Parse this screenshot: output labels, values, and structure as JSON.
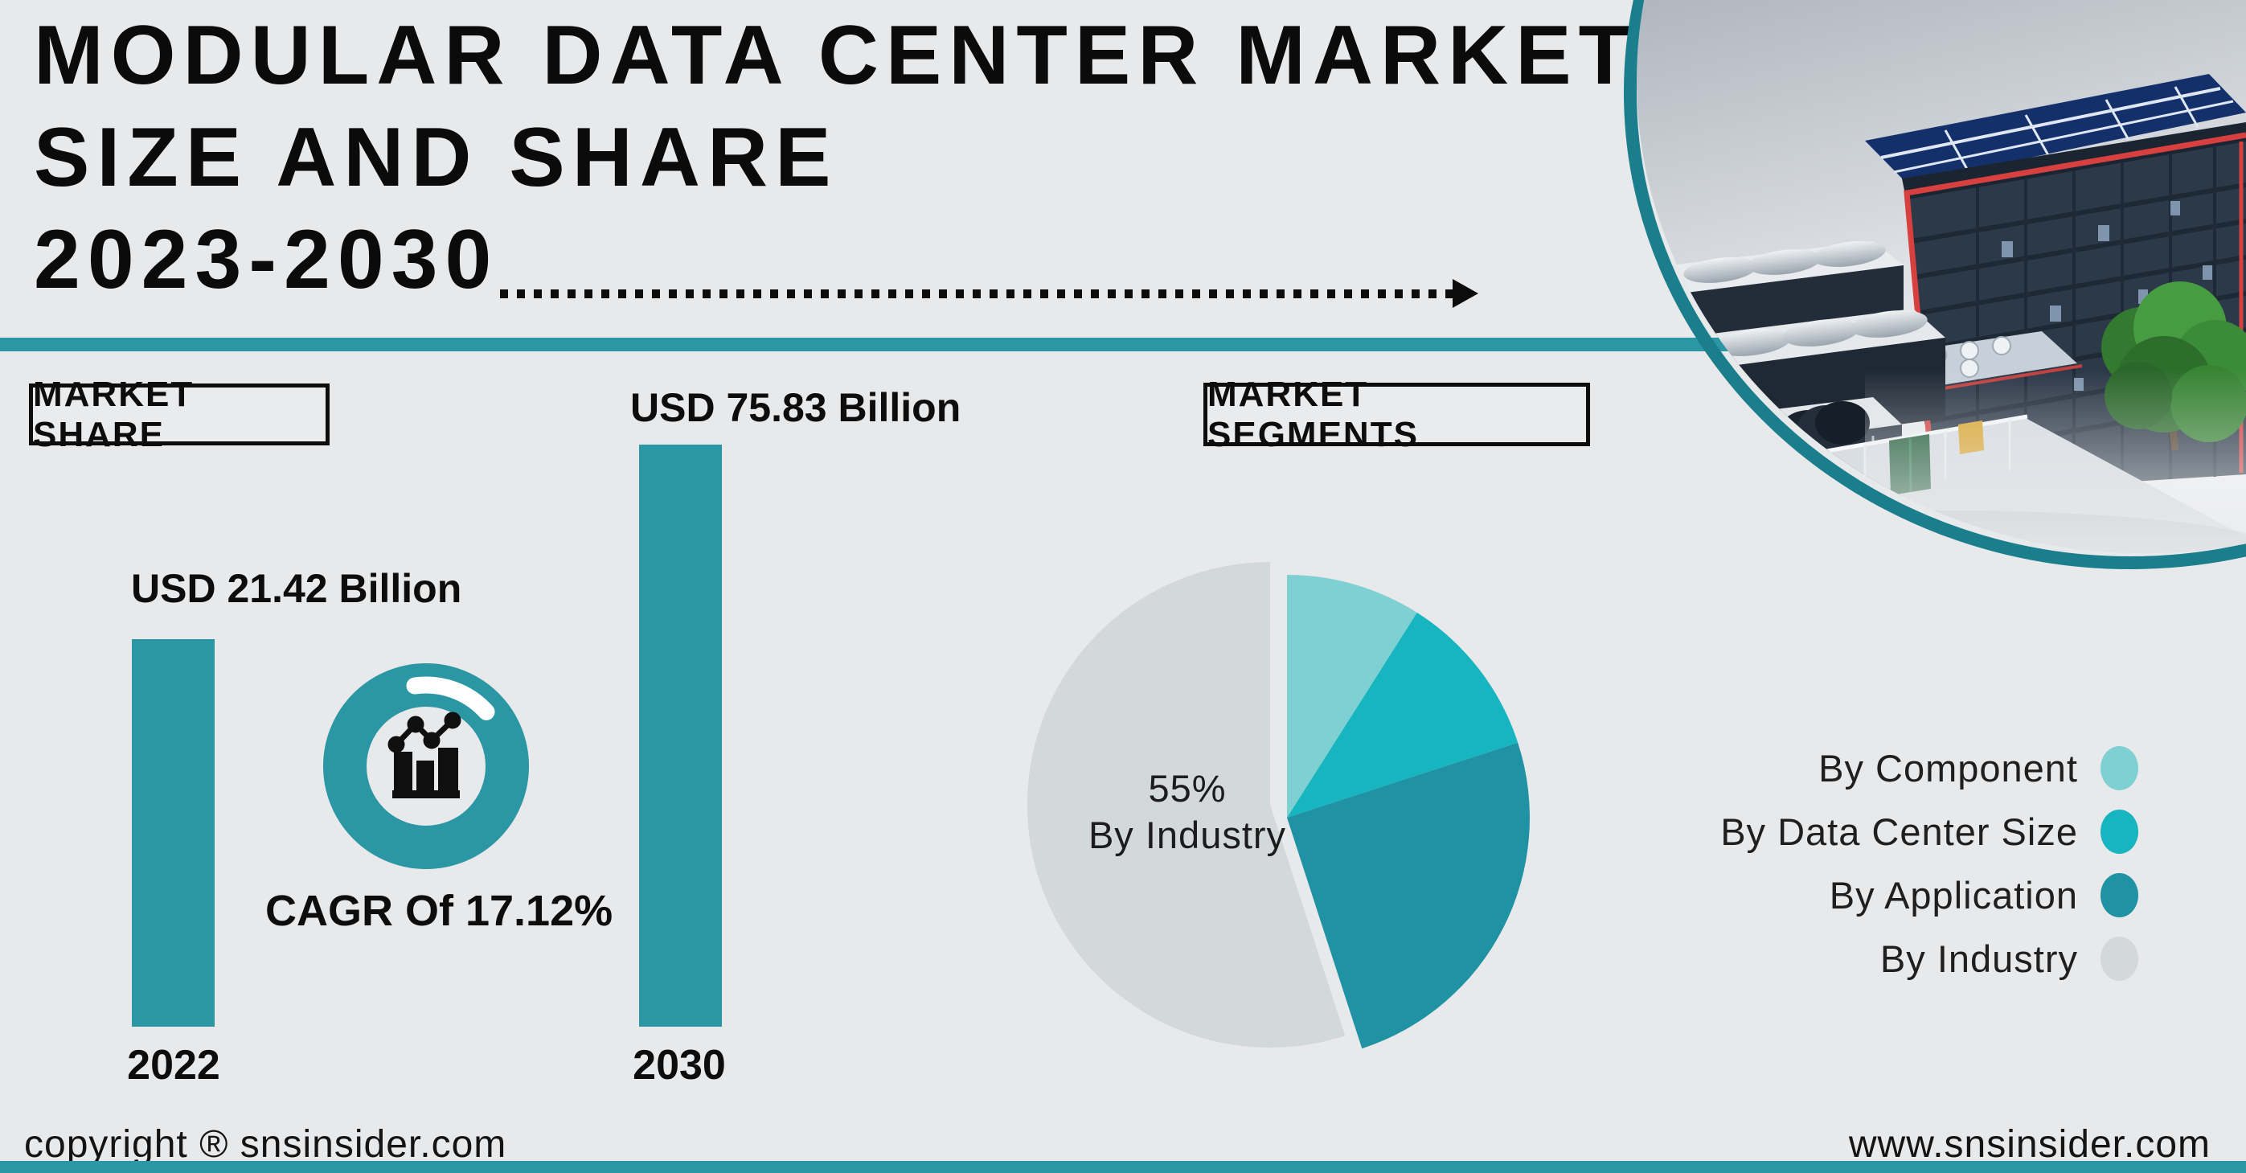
{
  "title": {
    "line1": "MODULAR DATA CENTER MARKET",
    "line2": "SIZE AND SHARE",
    "line3": "2023-2030"
  },
  "market_share": {
    "box_label": "MARKET SHARE",
    "bars": [
      {
        "year": "2022",
        "value_label": "USD 21.42 Billion"
      },
      {
        "year": "2030",
        "value_label": "USD 75.83 Billion"
      }
    ],
    "cagr_label": "CAGR Of 17.12%"
  },
  "market_segments": {
    "box_label": "MARKET SEGMENTS",
    "pie_annotation": {
      "line1": "55%",
      "line2": "By Industry"
    },
    "legend": [
      {
        "label": "By Component",
        "color": "#7ed0d3"
      },
      {
        "label": "By Data Center Size",
        "color": "#17b5bf"
      },
      {
        "label": "By Application",
        "color": "#1f92a3"
      },
      {
        "label": "By Industry",
        "color": "#d3d8db"
      }
    ]
  },
  "footer": {
    "copyright": "copyright ® snsinsider.com",
    "website": "www.snsinsider.com"
  },
  "colors": {
    "accent_teal": "#2b97a4",
    "arc_teal": "#1a7e8c",
    "background": "#e8e9eb",
    "text": "#0d0d0d"
  },
  "chart_data": [
    {
      "type": "bar",
      "title": "MARKET SHARE",
      "categories": [
        "2022",
        "2030"
      ],
      "values": [
        21.42,
        75.83
      ],
      "unit": "USD Billion",
      "value_labels": [
        "USD 21.42 Billion",
        "USD 75.83 Billion"
      ],
      "annotation": "CAGR Of 17.12%",
      "bar_color": "#2b97a4",
      "ylim": [
        0,
        80
      ],
      "grid": false
    },
    {
      "type": "pie",
      "title": "MARKET SEGMENTS",
      "labels": [
        "By Component",
        "By Data Center Size",
        "By Application",
        "By Industry"
      ],
      "values": [
        9,
        11,
        25,
        55
      ],
      "colors": [
        "#7ed0d3",
        "#17b5bf",
        "#1f92a3",
        "#d3d8db"
      ],
      "annotation": "55% By Industry",
      "start_angle_deg": 0,
      "legend_position": "right",
      "exploded_slice": "By Industry"
    }
  ]
}
